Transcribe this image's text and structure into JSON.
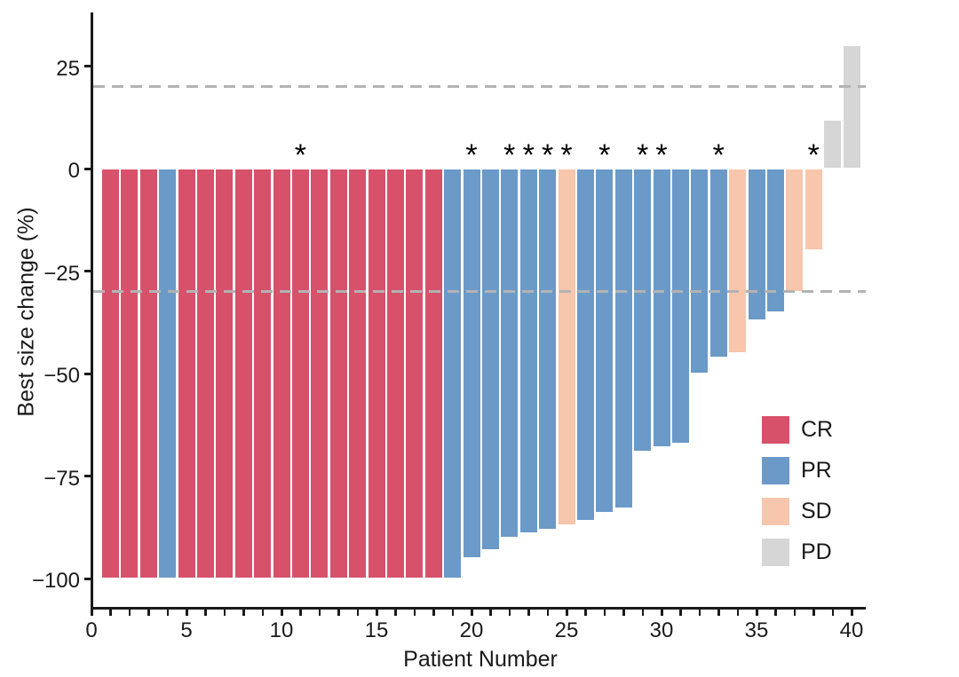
{
  "figure": {
    "background": "#ffffff",
    "marker_symbol": "*"
  },
  "legend": {
    "position": "inside-right-bottom",
    "items": [
      {
        "label": "CR",
        "color": "#D7516B"
      },
      {
        "label": "PR",
        "color": "#6B9AC8"
      },
      {
        "label": "SD",
        "color": "#F7C6AC"
      },
      {
        "label": "PD",
        "color": "#D6D6D6"
      }
    ]
  },
  "chart_data": {
    "type": "bar",
    "subtype": "waterfall",
    "title": "",
    "xlabel": "Patient Number",
    "ylabel": "Best size change (%)",
    "xlim": [
      0,
      41
    ],
    "ylim": [
      -107,
      38
    ],
    "grid": false,
    "x_tick_values": [
      0,
      5,
      10,
      15,
      20,
      25,
      30,
      35,
      40
    ],
    "x_tick_labels": [
      "0",
      "5",
      "10",
      "15",
      "20",
      "25",
      "30",
      "35",
      "40"
    ],
    "x_minor_tick_step": 1,
    "y_tick_values": [
      25,
      0,
      -25,
      -50,
      -75,
      -100
    ],
    "y_tick_labels": [
      "25",
      "0",
      "−25",
      "−50",
      "−75",
      "−100"
    ],
    "reference_lines": [
      {
        "y": 20,
        "style": "dashed",
        "color": "#B3B3B3"
      },
      {
        "y": -30,
        "style": "dashed",
        "color": "#B3B3B3"
      }
    ],
    "response_colors": {
      "CR": "#D7516B",
      "PR": "#6B9AC8",
      "SD": "#F7C6AC",
      "PD": "#D6D6D6"
    },
    "marked_patients": [
      11,
      20,
      22,
      23,
      24,
      25,
      27,
      29,
      30,
      33,
      38
    ],
    "patients": [
      {
        "patient": 1,
        "value": -100,
        "response": "CR",
        "asterisk": false
      },
      {
        "patient": 2,
        "value": -100,
        "response": "CR",
        "asterisk": false
      },
      {
        "patient": 3,
        "value": -100,
        "response": "CR",
        "asterisk": false
      },
      {
        "patient": 4,
        "value": -100,
        "response": "PR",
        "asterisk": false
      },
      {
        "patient": 5,
        "value": -100,
        "response": "CR",
        "asterisk": false
      },
      {
        "patient": 6,
        "value": -100,
        "response": "CR",
        "asterisk": false
      },
      {
        "patient": 7,
        "value": -100,
        "response": "CR",
        "asterisk": false
      },
      {
        "patient": 8,
        "value": -100,
        "response": "CR",
        "asterisk": false
      },
      {
        "patient": 9,
        "value": -100,
        "response": "CR",
        "asterisk": false
      },
      {
        "patient": 10,
        "value": -100,
        "response": "CR",
        "asterisk": false
      },
      {
        "patient": 11,
        "value": -100,
        "response": "CR",
        "asterisk": true
      },
      {
        "patient": 12,
        "value": -100,
        "response": "CR",
        "asterisk": false
      },
      {
        "patient": 13,
        "value": -100,
        "response": "CR",
        "asterisk": false
      },
      {
        "patient": 14,
        "value": -100,
        "response": "CR",
        "asterisk": false
      },
      {
        "patient": 15,
        "value": -100,
        "response": "CR",
        "asterisk": false
      },
      {
        "patient": 16,
        "value": -100,
        "response": "CR",
        "asterisk": false
      },
      {
        "patient": 17,
        "value": -100,
        "response": "CR",
        "asterisk": false
      },
      {
        "patient": 18,
        "value": -100,
        "response": "CR",
        "asterisk": false
      },
      {
        "patient": 19,
        "value": -100,
        "response": "PR",
        "asterisk": false
      },
      {
        "patient": 20,
        "value": -95,
        "response": "PR",
        "asterisk": true
      },
      {
        "patient": 21,
        "value": -93,
        "response": "PR",
        "asterisk": false
      },
      {
        "patient": 22,
        "value": -90,
        "response": "PR",
        "asterisk": true
      },
      {
        "patient": 23,
        "value": -89,
        "response": "PR",
        "asterisk": true
      },
      {
        "patient": 24,
        "value": -88,
        "response": "PR",
        "asterisk": true
      },
      {
        "patient": 25,
        "value": -87,
        "response": "SD",
        "asterisk": true
      },
      {
        "patient": 26,
        "value": -86,
        "response": "PR",
        "asterisk": false
      },
      {
        "patient": 27,
        "value": -84,
        "response": "PR",
        "asterisk": true
      },
      {
        "patient": 28,
        "value": -83,
        "response": "PR",
        "asterisk": false
      },
      {
        "patient": 29,
        "value": -69,
        "response": "PR",
        "asterisk": true
      },
      {
        "patient": 30,
        "value": -68,
        "response": "PR",
        "asterisk": true
      },
      {
        "patient": 31,
        "value": -67,
        "response": "PR",
        "asterisk": false
      },
      {
        "patient": 32,
        "value": -50,
        "response": "PR",
        "asterisk": false
      },
      {
        "patient": 33,
        "value": -46,
        "response": "PR",
        "asterisk": true
      },
      {
        "patient": 34,
        "value": -45,
        "response": "SD",
        "asterisk": false
      },
      {
        "patient": 35,
        "value": -37,
        "response": "PR",
        "asterisk": false
      },
      {
        "patient": 36,
        "value": -35,
        "response": "PR",
        "asterisk": false
      },
      {
        "patient": 37,
        "value": -30,
        "response": "SD",
        "asterisk": false
      },
      {
        "patient": 38,
        "value": -20,
        "response": "SD",
        "asterisk": true
      },
      {
        "patient": 39,
        "value": 12,
        "response": "PD",
        "asterisk": false
      },
      {
        "patient": 40,
        "value": 30,
        "response": "PD",
        "asterisk": false
      }
    ]
  }
}
